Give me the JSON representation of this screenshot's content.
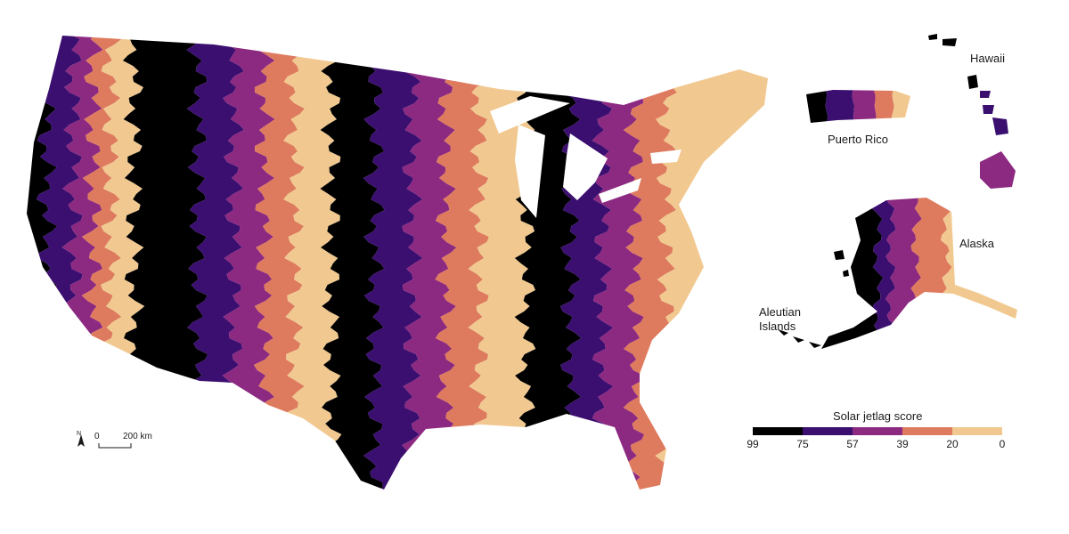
{
  "map": {
    "labels": {
      "hawaii": "Hawaii",
      "puerto_rico": "Puerto Rico",
      "alaska": "Alaska",
      "aleutian_line1": "Aleutian",
      "aleutian_line2": "Islands"
    },
    "scale_bar": {
      "north": "N",
      "zero": "0",
      "distance": "200 km"
    }
  },
  "legend": {
    "title": "Solar jetlag score",
    "ticks": [
      "99",
      "75",
      "57",
      "39",
      "20",
      "0"
    ],
    "colors": [
      "#000000",
      "#3b0f70",
      "#8c2981",
      "#de7b5e",
      "#f1c990"
    ]
  },
  "colors": {
    "black": "#000000",
    "indigo": "#3b0f70",
    "magenta": "#8c2981",
    "salmon": "#de7b5e",
    "peach": "#f1c990",
    "water": "#ffffff"
  }
}
